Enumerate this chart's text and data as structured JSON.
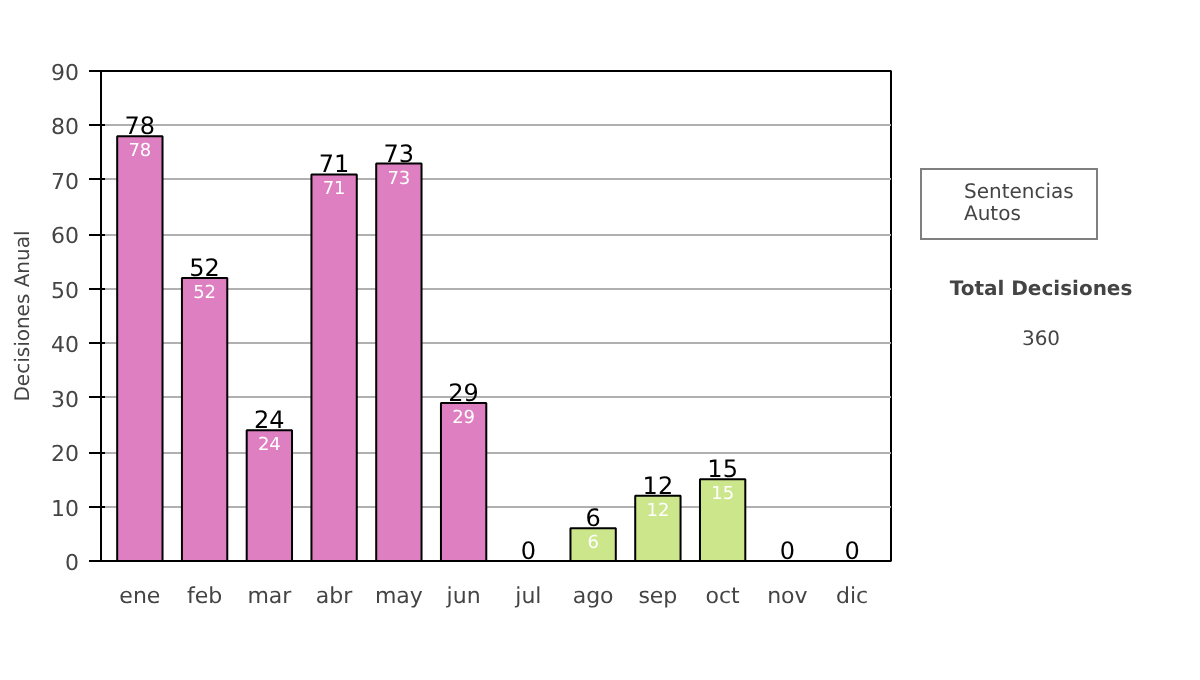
{
  "chart_data": {
    "type": "bar",
    "stacked": true,
    "ylabel": "Decisiones Anual",
    "categories": [
      "ene",
      "feb",
      "mar",
      "abr",
      "may",
      "jun",
      "jul",
      "ago",
      "sep",
      "oct",
      "nov",
      "dic"
    ],
    "series": [
      {
        "name": "Sentencias",
        "color": "#dd7fc0",
        "values": [
          78,
          52,
          24,
          71,
          73,
          29,
          0,
          null,
          null,
          null,
          null,
          null
        ],
        "value_labels": [
          "78",
          "52",
          "24",
          "71",
          "73",
          "29",
          null,
          null,
          null,
          null,
          null,
          null
        ]
      },
      {
        "name": "Autos",
        "color": "#cce68c",
        "values": [
          null,
          null,
          null,
          null,
          null,
          null,
          null,
          6,
          12,
          15,
          0,
          0
        ],
        "value_labels": [
          null,
          null,
          null,
          null,
          null,
          null,
          null,
          "6",
          "12",
          "15",
          null,
          null
        ]
      }
    ],
    "totals": [
      "78",
      "52",
      "24",
      "71",
      "73",
      "29",
      "0",
      "6",
      "12",
      "15",
      "0",
      "0"
    ],
    "ylim": [
      0,
      90
    ],
    "yticks": [
      0,
      10,
      20,
      30,
      40,
      50,
      60,
      70,
      80,
      90
    ],
    "grid": "y",
    "legend": "right",
    "annotations": [
      "Total Decisiones",
      "360"
    ]
  }
}
